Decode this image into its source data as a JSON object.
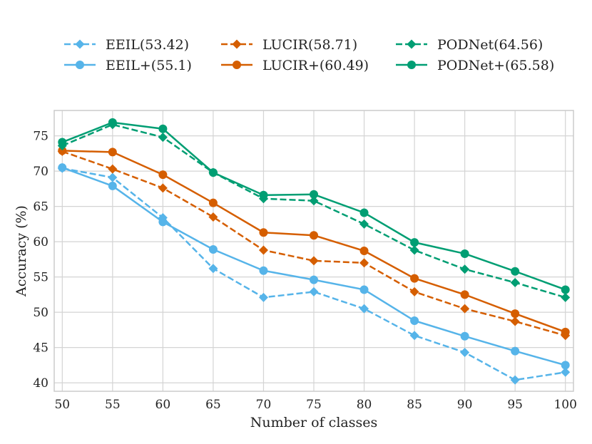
{
  "chart_data": {
    "type": "line",
    "title": "",
    "xlabel": "Number of classes",
    "ylabel": "Accuracy (%)",
    "x": [
      50,
      55,
      60,
      65,
      70,
      75,
      80,
      85,
      90,
      95,
      100
    ],
    "xlim": [
      49.2,
      100.8
    ],
    "ylim": [
      38.8,
      78.6
    ],
    "xticks": [
      50,
      55,
      60,
      65,
      70,
      75,
      80,
      85,
      90,
      95,
      100
    ],
    "yticks": [
      40,
      45,
      50,
      55,
      60,
      65,
      70,
      75
    ],
    "grid": true,
    "legend_position": "top",
    "series": [
      {
        "name": "EEIL(53.42)",
        "color": "#56b4e9",
        "linestyle": "dashed",
        "marker": "diamond",
        "values": [
          70.4,
          69.1,
          63.4,
          56.2,
          52.1,
          52.9,
          50.5,
          46.7,
          44.3,
          40.4,
          41.5
        ]
      },
      {
        "name": "EEIL+(55.1)",
        "color": "#56b4e9",
        "linestyle": "solid",
        "marker": "circle",
        "values": [
          70.5,
          67.9,
          62.8,
          58.9,
          55.9,
          54.6,
          53.2,
          48.8,
          46.6,
          44.5,
          42.5
        ]
      },
      {
        "name": "LUCIR(58.71)",
        "color": "#d55e00",
        "linestyle": "dashed",
        "marker": "diamond",
        "values": [
          72.8,
          70.3,
          67.6,
          63.5,
          58.8,
          57.3,
          57.0,
          52.9,
          50.5,
          48.7,
          46.7
        ]
      },
      {
        "name": "LUCIR+(60.49)",
        "color": "#d55e00",
        "linestyle": "solid",
        "marker": "circle",
        "values": [
          72.9,
          72.7,
          69.5,
          65.5,
          61.3,
          60.9,
          58.7,
          54.8,
          52.5,
          49.8,
          47.2
        ]
      },
      {
        "name": "PODNet(64.56)",
        "color": "#009e73",
        "linestyle": "dashed",
        "marker": "diamond",
        "values": [
          73.6,
          76.6,
          74.8,
          69.8,
          66.1,
          65.8,
          62.5,
          58.8,
          56.1,
          54.2,
          52.1
        ]
      },
      {
        "name": "PODNet+(65.58)",
        "color": "#009e73",
        "linestyle": "solid",
        "marker": "circle",
        "values": [
          74.1,
          76.9,
          76.0,
          69.8,
          66.6,
          66.7,
          64.1,
          59.9,
          58.3,
          55.8,
          53.2
        ]
      }
    ]
  }
}
